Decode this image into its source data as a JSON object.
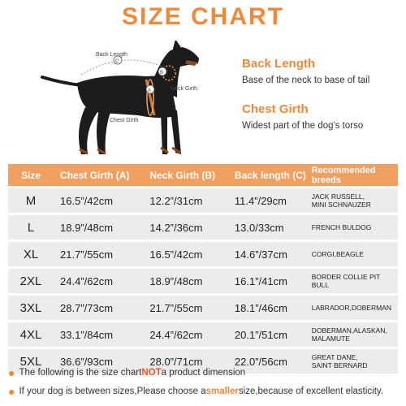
{
  "title": "SIZE CHART",
  "diagram": {
    "back_length_label": "Back Length",
    "neck_girth_label": "Neck Girth",
    "chest_girth_label": "Chest Girth",
    "marker_c": "C",
    "marker_b": "B",
    "marker_a": "A"
  },
  "legend": {
    "back_length_title": "Back Length",
    "back_length_desc": "Base of the neck to base of tail",
    "chest_girth_title": "Chest Girth",
    "chest_girth_desc": "Widest part of the dog's torso"
  },
  "table": {
    "headers": [
      "Size",
      "Chest Girth (A)",
      "Neck Girth (B)",
      "Back length (C)",
      "Recommended breeds"
    ],
    "rows": [
      {
        "size": "M",
        "chest": "16.5”/42cm",
        "neck": "12.2”/31cm",
        "back": "11.4”/29cm",
        "breed1": "JACK RUSSELL,",
        "breed2": "MINI SCHNAUZER"
      },
      {
        "size": "L",
        "chest": "18.9”/48cm",
        "neck": "14.2”/36cm",
        "back": "13.0/33cm",
        "breed1": "FRENCH BULDOG",
        "breed2": ""
      },
      {
        "size": "XL",
        "chest": "21.7”/55cm",
        "neck": "16.5”/42cm",
        "back": "14.6”/37cm",
        "breed1": "CORGI,BEAGLE",
        "breed2": ""
      },
      {
        "size": "2XL",
        "chest": "24.4”/62cm",
        "neck": "18.9”/48cm",
        "back": "16.1”/41cm",
        "breed1": "BORDER COLLIE PIT BULL",
        "breed2": ""
      },
      {
        "size": "3XL",
        "chest": "28.7”/73cm",
        "neck": "21.7”/55cm",
        "back": "18.1”/46cm",
        "breed1": "LABRADOR,DOBERMAN",
        "breed2": ""
      },
      {
        "size": "4XL",
        "chest": "33.1”/84cm",
        "neck": "24.4”/62cm",
        "back": "20.1”/51cm",
        "breed1": "DOBERMAN,ALASKAN,",
        "breed2": "MALAMUTE"
      },
      {
        "size": "5XL",
        "chest": "36.6”/93cm",
        "neck": "28.0”/71cm",
        "back": "22.0”/56cm",
        "breed1": "GREAT DANE,",
        "breed2": "SAINT BERNARD"
      }
    ]
  },
  "notes": {
    "note1_before": "The following is the size chart ",
    "note1_highlight": "NOT",
    "note1_after": " a product dimension",
    "note2_before": "If your dog is between sizes,Please choose a ",
    "note2_highlight": "smaller",
    "note2_after": " size,because of excellent elasticity."
  },
  "colors": {
    "accent": "#ee8a3c",
    "header_bg": "#f0a060",
    "row_bg": "#ececec",
    "highlight_red": "#e85a2a"
  }
}
